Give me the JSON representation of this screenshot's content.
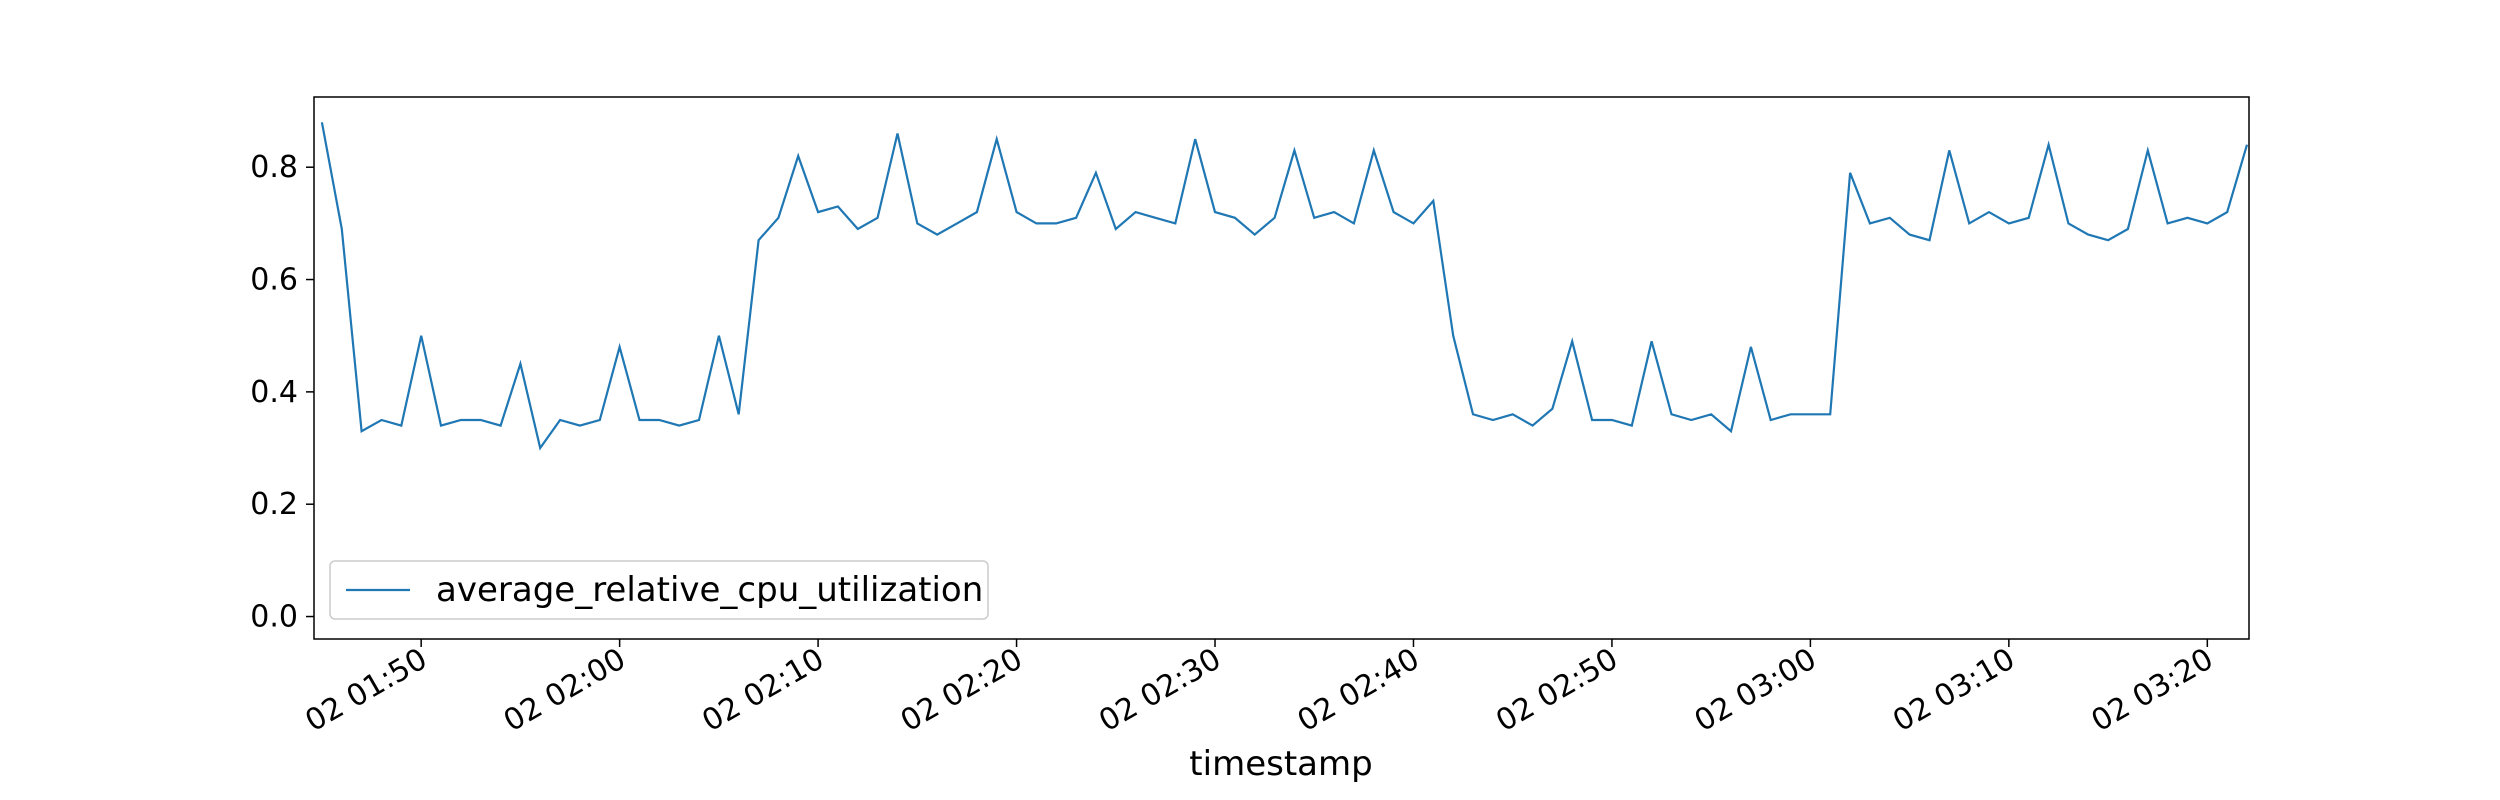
{
  "chart_data": {
    "type": "line",
    "xlabel": "timestamp",
    "x": [
      "02 01:45",
      "02 01:46",
      "02 01:47",
      "02 01:48",
      "02 01:49",
      "02 01:50",
      "02 01:51",
      "02 01:52",
      "02 01:53",
      "02 01:54",
      "02 01:55",
      "02 01:56",
      "02 01:57",
      "02 01:58",
      "02 01:59",
      "02 02:00",
      "02 02:01",
      "02 02:02",
      "02 02:03",
      "02 02:04",
      "02 02:05",
      "02 02:06",
      "02 02:07",
      "02 02:08",
      "02 02:09",
      "02 02:10",
      "02 02:11",
      "02 02:12",
      "02 02:13",
      "02 02:14",
      "02 02:15",
      "02 02:16",
      "02 02:17",
      "02 02:18",
      "02 02:19",
      "02 02:20",
      "02 02:21",
      "02 02:22",
      "02 02:23",
      "02 02:24",
      "02 02:25",
      "02 02:26",
      "02 02:27",
      "02 02:28",
      "02 02:29",
      "02 02:30",
      "02 02:31",
      "02 02:32",
      "02 02:33",
      "02 02:34",
      "02 02:35",
      "02 02:36",
      "02 02:37",
      "02 02:38",
      "02 02:39",
      "02 02:40",
      "02 02:41",
      "02 02:42",
      "02 02:43",
      "02 02:44",
      "02 02:45",
      "02 02:46",
      "02 02:47",
      "02 02:48",
      "02 02:49",
      "02 02:50",
      "02 02:51",
      "02 02:52",
      "02 02:53",
      "02 02:54",
      "02 02:55",
      "02 02:56",
      "02 02:57",
      "02 02:58",
      "02 02:59",
      "02 03:00",
      "02 03:01",
      "02 03:02",
      "02 03:03",
      "02 03:04",
      "02 03:05",
      "02 03:06",
      "02 03:07",
      "02 03:08",
      "02 03:09",
      "02 03:10",
      "02 03:11",
      "02 03:12",
      "02 03:13",
      "02 03:14",
      "02 03:15",
      "02 03:16",
      "02 03:17",
      "02 03:18",
      "02 03:19",
      "02 03:20",
      "02 03:21",
      "02 03:22"
    ],
    "series": [
      {
        "name": "average_relative_cpu_utilization",
        "color": "#1f77b4",
        "values": [
          0.88,
          0.69,
          0.33,
          0.35,
          0.34,
          0.5,
          0.34,
          0.35,
          0.35,
          0.34,
          0.45,
          0.3,
          0.35,
          0.34,
          0.35,
          0.48,
          0.35,
          0.35,
          0.34,
          0.35,
          0.5,
          0.36,
          0.67,
          0.71,
          0.82,
          0.72,
          0.73,
          0.69,
          0.71,
          0.86,
          0.7,
          0.68,
          0.7,
          0.72,
          0.85,
          0.72,
          0.7,
          0.7,
          0.71,
          0.79,
          0.69,
          0.72,
          0.71,
          0.7,
          0.85,
          0.72,
          0.71,
          0.68,
          0.71,
          0.83,
          0.71,
          0.72,
          0.7,
          0.83,
          0.72,
          0.7,
          0.74,
          0.5,
          0.36,
          0.35,
          0.36,
          0.34,
          0.37,
          0.49,
          0.35,
          0.35,
          0.34,
          0.49,
          0.36,
          0.35,
          0.36,
          0.33,
          0.48,
          0.35,
          0.36,
          0.36,
          0.36,
          0.79,
          0.7,
          0.71,
          0.68,
          0.67,
          0.83,
          0.7,
          0.72,
          0.7,
          0.71,
          0.84,
          0.7,
          0.68,
          0.67,
          0.69,
          0.83,
          0.7,
          0.71,
          0.7,
          0.72,
          0.84
        ]
      }
    ],
    "xlim": [
      "02 01:44:36",
      "02 03:22:06"
    ],
    "xticks": [
      "02 01:50",
      "02 02:00",
      "02 02:10",
      "02 02:20",
      "02 02:30",
      "02 02:40",
      "02 02:50",
      "02 03:00",
      "02 03:10",
      "02 03:20"
    ],
    "ylim": [
      -0.04,
      0.925
    ],
    "yticks": [
      {
        "value": 0,
        "label": "0.0"
      },
      {
        "value": 0.2,
        "label": "0.2"
      },
      {
        "value": 0.4,
        "label": "0.4"
      },
      {
        "value": 0.6,
        "label": "0.6"
      },
      {
        "value": 0.8,
        "label": "0.8"
      }
    ],
    "legend": "lower left"
  }
}
